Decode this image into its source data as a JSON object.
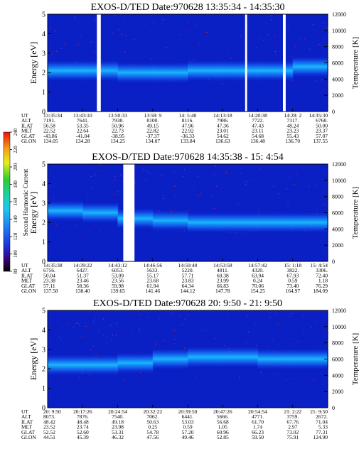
{
  "figure": {
    "y_left_label": "Energy [eV]",
    "y_right_label": "Temperature [K]",
    "colorbar": {
      "label": "Second Harmonic Current",
      "ticks": [
        "80",
        "100",
        "120",
        "140",
        "160",
        "180",
        "200",
        "220",
        "240"
      ],
      "range": [
        80,
        240
      ]
    },
    "table_row_labels": [
      "UT",
      "ALT",
      "ILAT",
      "MLT",
      "GLAT",
      "GLON"
    ]
  },
  "chart_data": [
    {
      "type": "heatmap",
      "title": "EXOS-D/TED Date:970628 13:35:34 - 14:35:30",
      "ylabel": "Energy [eV]",
      "y2label": "Temperature [K]",
      "ylim": [
        0,
        5
      ],
      "y2lim": [
        0,
        12000
      ],
      "yticks": [
        "0",
        "1",
        "2",
        "3",
        "4",
        "5"
      ],
      "y2ticks": [
        "0",
        "2000",
        "4000",
        "6000",
        "8000",
        "10000",
        "12000"
      ],
      "band_center_ev": [
        2.1,
        2.1,
        2.0,
        2.0,
        2.1,
        2.1,
        2.1,
        2.3
      ],
      "data_gaps": [
        [
          0.176,
          0.19
        ],
        [
          0.705,
          0.712
        ],
        [
          0.84,
          0.85
        ]
      ],
      "table": [
        [
          "13:35:34",
          "13:43:10",
          "13:50:33",
          "13:58: 9",
          "14: 5:40",
          "14:13:18",
          "14:20:38",
          "14:28: 2",
          "14:35:30"
        ],
        [
          "7191.",
          "7641.",
          "7938.",
          "8100.",
          "8116.",
          "7986.",
          "7722.",
          "7317.",
          "6768."
        ],
        [
          "56.58",
          "53.35",
          "50.96",
          "49.15",
          "47.96",
          "47.36",
          "47.43",
          "48.24",
          "50.00"
        ],
        [
          "22.52",
          "22.64",
          "22.73",
          "22.82",
          "22.92",
          "23.01",
          "23.11",
          "23.23",
          "23.37"
        ],
        [
          "-43.86",
          "-41.04",
          "-38.95",
          "-37.37",
          "-36.33",
          "54.62",
          "54.68",
          "55.43",
          "57.07"
        ],
        [
          "134.05",
          "134.28",
          "134.25",
          "134.07",
          "133.84",
          "136.63",
          "136.48",
          "136.70",
          "137.55"
        ]
      ]
    },
    {
      "type": "heatmap",
      "title": "EXOS-D/TED Date:970628 14:35:38 - 15: 4:54",
      "ylabel": "Energy [eV]",
      "y2label": "Temperature [K]",
      "ylim": [
        0,
        5
      ],
      "y2lim": [
        0,
        12000
      ],
      "yticks": [
        "0",
        "1",
        "2",
        "3",
        "4",
        "5"
      ],
      "y2ticks": [
        "0",
        "2000",
        "4000",
        "6000",
        "8000",
        "10000",
        "12000"
      ],
      "band_center_ev": [
        2.6,
        2.5,
        2.2,
        2.1,
        2.0,
        2.0,
        2.0,
        2.0
      ],
      "data_gaps": [
        [
          0.27,
          0.31
        ]
      ],
      "table": [
        [
          "14:35:38",
          "14:39:22",
          "14:43:12",
          "14:46:56",
          "14:50:40",
          "14:53:58",
          "14:57:42",
          "15: 1:18",
          "15: 4:54"
        ],
        [
          "6756.",
          "6427.",
          "6053.",
          "5633.",
          "5220.",
          "4811.",
          "4320.",
          "3822.",
          "3306."
        ],
        [
          "50.04",
          "51.37",
          "53.09",
          "55.17",
          "57.71",
          "60.38",
          "63.94",
          "67.93",
          "72.40"
        ],
        [
          "23.38",
          "23.46",
          "23.56",
          "23.68",
          "23.83",
          "23.99",
          "0.24",
          "0.59",
          "1.18"
        ],
        [
          "57.11",
          "58.36",
          "59.98",
          "61.94",
          "64.34",
          "66.83",
          "70.06",
          "73.40",
          "76.29"
        ],
        [
          "137.58",
          "138.40",
          "139.65",
          "141.46",
          "144.12",
          "147.78",
          "154.25",
          "164.97",
          "184.09"
        ]
      ]
    },
    {
      "type": "heatmap",
      "title": "EXOS-D/TED Date:970628 20: 9:50 - 21: 9:50",
      "ylabel": "Energy [eV]",
      "y2label": "Temperature [K]",
      "ylim": [
        0,
        5
      ],
      "y2lim": [
        0,
        12000
      ],
      "yticks": [
        "0",
        "1",
        "2",
        "3",
        "4",
        "5"
      ],
      "y2ticks": [
        "0",
        "2000",
        "4000",
        "6000",
        "8000",
        "10000",
        "12000"
      ],
      "band_center_ev": [
        2.2,
        2.2,
        2.3,
        2.5,
        2.6,
        2.6,
        2.5,
        2.5
      ],
      "data_gaps": [],
      "table": [
        [
          "20: 9:50",
          "20:17:26",
          "20:24:54",
          "20:32:22",
          "20:39:50",
          "20:47:26",
          "20:54:54",
          "21: 2:22",
          "21: 9:50"
        ],
        [
          "8073.",
          "7876.",
          "7540.",
          "7062.",
          "6441.",
          "5666.",
          "4771.",
          "3759.",
          "2672."
        ],
        [
          "48.42",
          "48.48",
          "49.18",
          "50.63",
          "53.03",
          "56.68",
          "61.70",
          "67.76",
          "71.04"
        ],
        [
          "23.52",
          "23.74",
          "23.98",
          "0.25",
          "0.59",
          "1.05",
          "1.74",
          "2.97",
          "5.33"
        ],
        [
          "52.52",
          "52.60",
          "53.31",
          "54.78",
          "57.20",
          "60.96",
          "66.23",
          "73.02",
          "77.31"
        ],
        [
          "44.51",
          "45.39",
          "46.32",
          "47.56",
          "49.46",
          "52.85",
          "59.50",
          "75.91",
          "124.90"
        ]
      ]
    }
  ]
}
